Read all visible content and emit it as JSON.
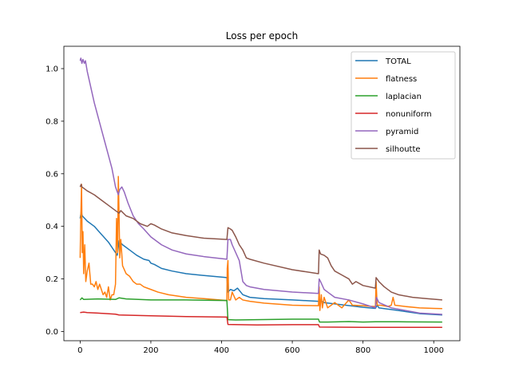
{
  "chart_data": {
    "type": "line",
    "title": "Loss per epoch",
    "xlabel": "",
    "ylabel": "",
    "xlim": [
      -46,
      1074
    ],
    "ylim": [
      -0.035,
      1.085
    ],
    "xticks": [
      0,
      200,
      400,
      600,
      800,
      1000
    ],
    "yticks": [
      0.0,
      0.2,
      0.4,
      0.6,
      0.8,
      1.0
    ],
    "xtick_labels": [
      "0",
      "200",
      "400",
      "600",
      "800",
      "1000"
    ],
    "ytick_labels": [
      "0.0",
      "0.2",
      "0.4",
      "0.6",
      "0.8",
      "1.0"
    ],
    "grid": false,
    "legend_position": "top-right",
    "series": [
      {
        "name": "TOTAL",
        "color": "#1f77b4",
        "points": [
          [
            0,
            0.43
          ],
          [
            3,
            0.455
          ],
          [
            6,
            0.44
          ],
          [
            20,
            0.42
          ],
          [
            40,
            0.4
          ],
          [
            60,
            0.37
          ],
          [
            80,
            0.34
          ],
          [
            100,
            0.3
          ],
          [
            105,
            0.29
          ],
          [
            110,
            0.345
          ],
          [
            113,
            0.34
          ],
          [
            120,
            0.33
          ],
          [
            140,
            0.31
          ],
          [
            160,
            0.29
          ],
          [
            180,
            0.275
          ],
          [
            195,
            0.27
          ],
          [
            200,
            0.26
          ],
          [
            210,
            0.255
          ],
          [
            230,
            0.24
          ],
          [
            260,
            0.23
          ],
          [
            300,
            0.22
          ],
          [
            350,
            0.213
          ],
          [
            415,
            0.205
          ],
          [
            418,
            0.15
          ],
          [
            425,
            0.16
          ],
          [
            435,
            0.155
          ],
          [
            445,
            0.165
          ],
          [
            460,
            0.14
          ],
          [
            480,
            0.13
          ],
          [
            520,
            0.125
          ],
          [
            600,
            0.12
          ],
          [
            674,
            0.115
          ],
          [
            677,
            0.12
          ],
          [
            690,
            0.11
          ],
          [
            720,
            0.105
          ],
          [
            770,
            0.097
          ],
          [
            800,
            0.092
          ],
          [
            835,
            0.088
          ],
          [
            840,
            0.1
          ],
          [
            845,
            0.09
          ],
          [
            900,
            0.08
          ],
          [
            960,
            0.068
          ],
          [
            1024,
            0.063
          ]
        ]
      },
      {
        "name": "flatness",
        "color": "#ff7f0e",
        "points": [
          [
            0,
            0.28
          ],
          [
            2,
            0.44
          ],
          [
            4,
            0.56
          ],
          [
            6,
            0.3
          ],
          [
            8,
            0.38
          ],
          [
            10,
            0.22
          ],
          [
            13,
            0.33
          ],
          [
            16,
            0.19
          ],
          [
            20,
            0.23
          ],
          [
            25,
            0.26
          ],
          [
            30,
            0.18
          ],
          [
            35,
            0.18
          ],
          [
            40,
            0.17
          ],
          [
            45,
            0.19
          ],
          [
            50,
            0.16
          ],
          [
            55,
            0.18
          ],
          [
            60,
            0.16
          ],
          [
            65,
            0.14
          ],
          [
            70,
            0.15
          ],
          [
            75,
            0.13
          ],
          [
            80,
            0.17
          ],
          [
            85,
            0.12
          ],
          [
            90,
            0.14
          ],
          [
            95,
            0.14
          ],
          [
            100,
            0.18
          ],
          [
            103,
            0.43
          ],
          [
            106,
            0.3
          ],
          [
            108,
            0.59
          ],
          [
            110,
            0.45
          ],
          [
            112,
            0.28
          ],
          [
            115,
            0.35
          ],
          [
            120,
            0.25
          ],
          [
            130,
            0.22
          ],
          [
            140,
            0.21
          ],
          [
            150,
            0.19
          ],
          [
            160,
            0.18
          ],
          [
            170,
            0.18
          ],
          [
            180,
            0.17
          ],
          [
            190,
            0.165
          ],
          [
            200,
            0.16
          ],
          [
            220,
            0.15
          ],
          [
            250,
            0.14
          ],
          [
            300,
            0.13
          ],
          [
            350,
            0.125
          ],
          [
            415,
            0.118
          ],
          [
            416,
            0.24
          ],
          [
            418,
            0.27
          ],
          [
            420,
            0.12
          ],
          [
            425,
            0.12
          ],
          [
            430,
            0.15
          ],
          [
            440,
            0.12
          ],
          [
            450,
            0.13
          ],
          [
            460,
            0.12
          ],
          [
            480,
            0.115
          ],
          [
            520,
            0.108
          ],
          [
            600,
            0.1
          ],
          [
            674,
            0.098
          ],
          [
            676,
            0.17
          ],
          [
            678,
            0.08
          ],
          [
            682,
            0.14
          ],
          [
            685,
            0.09
          ],
          [
            690,
            0.13
          ],
          [
            700,
            0.09
          ],
          [
            720,
            0.11
          ],
          [
            740,
            0.09
          ],
          [
            760,
            0.12
          ],
          [
            770,
            0.1
          ],
          [
            800,
            0.098
          ],
          [
            820,
            0.096
          ],
          [
            835,
            0.095
          ],
          [
            837,
            0.19
          ],
          [
            840,
            0.1
          ],
          [
            850,
            0.1
          ],
          [
            870,
            0.095
          ],
          [
            880,
            0.1
          ],
          [
            885,
            0.13
          ],
          [
            890,
            0.1
          ],
          [
            920,
            0.095
          ],
          [
            960,
            0.09
          ],
          [
            1000,
            0.088
          ],
          [
            1024,
            0.087
          ]
        ]
      },
      {
        "name": "laplacian",
        "color": "#2ca02c",
        "points": [
          [
            0,
            0.12
          ],
          [
            5,
            0.128
          ],
          [
            10,
            0.122
          ],
          [
            50,
            0.124
          ],
          [
            100,
            0.122
          ],
          [
            110,
            0.128
          ],
          [
            130,
            0.124
          ],
          [
            200,
            0.12
          ],
          [
            300,
            0.12
          ],
          [
            415,
            0.118
          ],
          [
            418,
            0.045
          ],
          [
            440,
            0.044
          ],
          [
            500,
            0.045
          ],
          [
            600,
            0.047
          ],
          [
            674,
            0.047
          ],
          [
            677,
            0.036
          ],
          [
            700,
            0.036
          ],
          [
            760,
            0.038
          ],
          [
            800,
            0.036
          ],
          [
            835,
            0.037
          ],
          [
            900,
            0.037
          ],
          [
            1024,
            0.036
          ]
        ]
      },
      {
        "name": "nonuniform",
        "color": "#d62728",
        "points": [
          [
            0,
            0.072
          ],
          [
            10,
            0.074
          ],
          [
            20,
            0.072
          ],
          [
            50,
            0.07
          ],
          [
            100,
            0.066
          ],
          [
            110,
            0.063
          ],
          [
            200,
            0.06
          ],
          [
            300,
            0.057
          ],
          [
            415,
            0.055
          ],
          [
            418,
            0.027
          ],
          [
            500,
            0.025
          ],
          [
            600,
            0.026
          ],
          [
            674,
            0.026
          ],
          [
            677,
            0.017
          ],
          [
            800,
            0.016
          ],
          [
            1024,
            0.016
          ]
        ]
      },
      {
        "name": "pyramid",
        "color": "#9467bd",
        "points": [
          [
            0,
            1.03
          ],
          [
            2,
            1.04
          ],
          [
            5,
            1.02
          ],
          [
            8,
            1.035
          ],
          [
            12,
            1.02
          ],
          [
            15,
            1.03
          ],
          [
            20,
            0.99
          ],
          [
            30,
            0.93
          ],
          [
            40,
            0.87
          ],
          [
            50,
            0.82
          ],
          [
            60,
            0.77
          ],
          [
            70,
            0.72
          ],
          [
            80,
            0.67
          ],
          [
            90,
            0.62
          ],
          [
            100,
            0.55
          ],
          [
            108,
            0.52
          ],
          [
            112,
            0.54
          ],
          [
            118,
            0.55
          ],
          [
            125,
            0.53
          ],
          [
            135,
            0.49
          ],
          [
            150,
            0.44
          ],
          [
            165,
            0.41
          ],
          [
            180,
            0.39
          ],
          [
            200,
            0.36
          ],
          [
            230,
            0.33
          ],
          [
            260,
            0.31
          ],
          [
            300,
            0.295
          ],
          [
            350,
            0.285
          ],
          [
            415,
            0.275
          ],
          [
            418,
            0.35
          ],
          [
            425,
            0.35
          ],
          [
            430,
            0.33
          ],
          [
            440,
            0.3
          ],
          [
            450,
            0.27
          ],
          [
            460,
            0.19
          ],
          [
            470,
            0.175
          ],
          [
            480,
            0.17
          ],
          [
            520,
            0.16
          ],
          [
            600,
            0.15
          ],
          [
            674,
            0.145
          ],
          [
            676,
            0.2
          ],
          [
            680,
            0.19
          ],
          [
            690,
            0.16
          ],
          [
            700,
            0.15
          ],
          [
            720,
            0.13
          ],
          [
            760,
            0.12
          ],
          [
            800,
            0.105
          ],
          [
            835,
            0.09
          ],
          [
            838,
            0.13
          ],
          [
            845,
            0.11
          ],
          [
            880,
            0.09
          ],
          [
            920,
            0.08
          ],
          [
            960,
            0.07
          ],
          [
            1000,
            0.067
          ],
          [
            1024,
            0.065
          ]
        ]
      },
      {
        "name": "silhoutte",
        "color": "#8c564b",
        "points": [
          [
            0,
            0.55
          ],
          [
            3,
            0.56
          ],
          [
            5,
            0.55
          ],
          [
            20,
            0.535
          ],
          [
            40,
            0.52
          ],
          [
            60,
            0.5
          ],
          [
            80,
            0.48
          ],
          [
            100,
            0.46
          ],
          [
            110,
            0.45
          ],
          [
            115,
            0.46
          ],
          [
            130,
            0.44
          ],
          [
            150,
            0.43
          ],
          [
            170,
            0.41
          ],
          [
            190,
            0.4
          ],
          [
            200,
            0.41
          ],
          [
            210,
            0.405
          ],
          [
            230,
            0.39
          ],
          [
            260,
            0.375
          ],
          [
            300,
            0.365
          ],
          [
            350,
            0.355
          ],
          [
            415,
            0.35
          ],
          [
            418,
            0.395
          ],
          [
            425,
            0.39
          ],
          [
            430,
            0.385
          ],
          [
            440,
            0.36
          ],
          [
            450,
            0.33
          ],
          [
            460,
            0.31
          ],
          [
            470,
            0.28
          ],
          [
            480,
            0.275
          ],
          [
            520,
            0.26
          ],
          [
            600,
            0.235
          ],
          [
            674,
            0.22
          ],
          [
            676,
            0.31
          ],
          [
            680,
            0.295
          ],
          [
            690,
            0.29
          ],
          [
            700,
            0.28
          ],
          [
            710,
            0.25
          ],
          [
            720,
            0.23
          ],
          [
            740,
            0.215
          ],
          [
            760,
            0.2
          ],
          [
            770,
            0.18
          ],
          [
            780,
            0.19
          ],
          [
            800,
            0.175
          ],
          [
            835,
            0.165
          ],
          [
            837,
            0.205
          ],
          [
            845,
            0.19
          ],
          [
            860,
            0.17
          ],
          [
            880,
            0.15
          ],
          [
            900,
            0.14
          ],
          [
            940,
            0.13
          ],
          [
            980,
            0.125
          ],
          [
            1024,
            0.12
          ]
        ]
      }
    ]
  }
}
